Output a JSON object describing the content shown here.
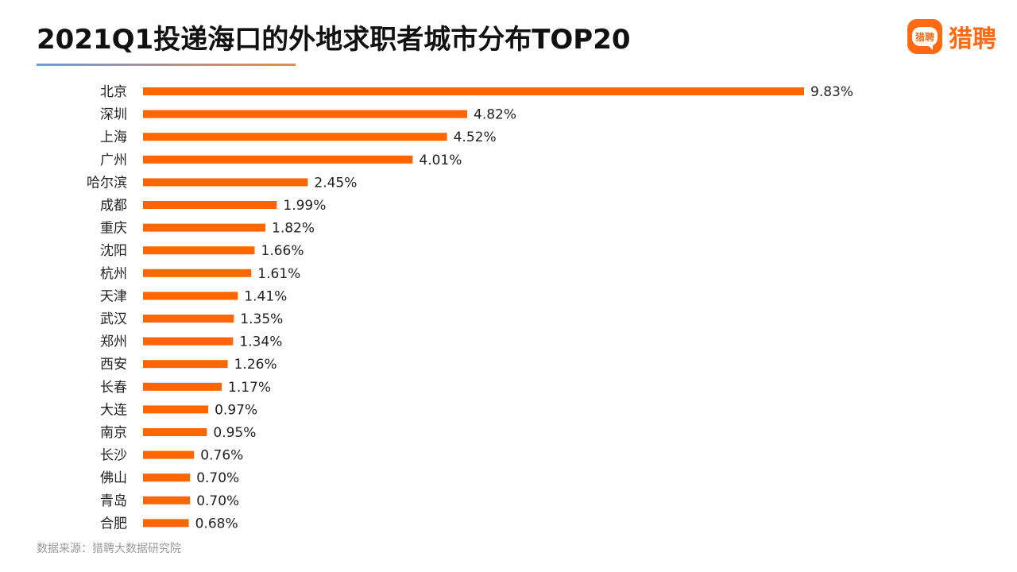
{
  "header": {
    "title": "2021Q1投递海口的外地求职者城市分布TOP20"
  },
  "logo": {
    "badge_text": "猎聘",
    "text": "猎聘",
    "color": "#ff6a13"
  },
  "footer": {
    "source": "数据来源：猎聘大数据研究院"
  },
  "chart_data": {
    "type": "bar",
    "orientation": "horizontal",
    "title": "2021Q1投递海口的外地求职者城市分布TOP20",
    "xlabel": "",
    "ylabel": "",
    "grid": false,
    "legend": "none",
    "bar_color": "#ff6600",
    "xlim": [
      0,
      9.83
    ],
    "value_suffix": "%",
    "categories": [
      "北京",
      "深圳",
      "上海",
      "广州",
      "哈尔滨",
      "成都",
      "重庆",
      "沈阳",
      "杭州",
      "天津",
      "武汉",
      "郑州",
      "西安",
      "长春",
      "大连",
      "南京",
      "长沙",
      "佛山",
      "青岛",
      "合肥"
    ],
    "values": [
      9.83,
      4.82,
      4.52,
      4.01,
      2.45,
      1.99,
      1.82,
      1.66,
      1.61,
      1.41,
      1.35,
      1.34,
      1.26,
      1.17,
      0.97,
      0.95,
      0.76,
      0.7,
      0.7,
      0.68
    ],
    "labels": [
      "9.83%",
      "4.82%",
      "4.52%",
      "4.01%",
      "2.45%",
      "1.99%",
      "1.82%",
      "1.66%",
      "1.61%",
      "1.41%",
      "1.35%",
      "1.34%",
      "1.26%",
      "1.17%",
      "0.97%",
      "0.95%",
      "0.76%",
      "0.70%",
      "0.70%",
      "0.68%"
    ]
  }
}
